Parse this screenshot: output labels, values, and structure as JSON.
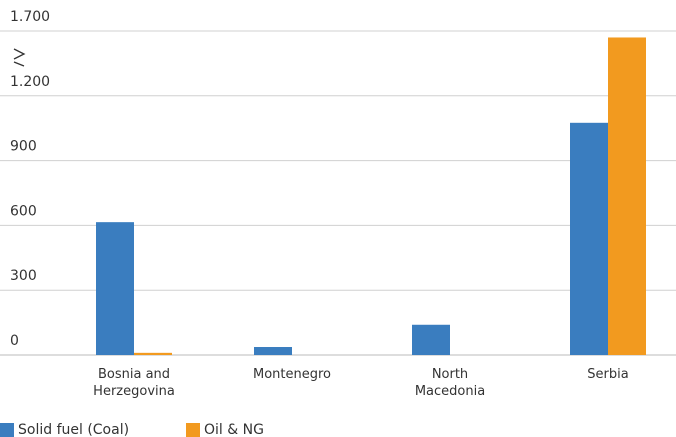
{
  "chart_data": {
    "type": "bar",
    "categories": [
      "Bosnia and Herzegovina",
      "Montenegro",
      "North Macedonia",
      "Serbia"
    ],
    "series": [
      {
        "name": "Solid fuel (Coal)",
        "color": "#3a7dbf",
        "values": [
          615,
          37,
          140,
          1075
        ]
      },
      {
        "name": "Oil & NG",
        "color": "#f29a1f",
        "values": [
          10,
          0,
          0,
          1650
        ]
      }
    ],
    "ylim": [
      0,
      1700
    ],
    "yticks": [
      0,
      300,
      600,
      900,
      {
        "value": 1200,
        "label": "1.200"
      },
      {
        "value": 1700,
        "label": "1.700"
      }
    ],
    "axis_break": true,
    "grid": true,
    "legend": "bottom-left"
  }
}
